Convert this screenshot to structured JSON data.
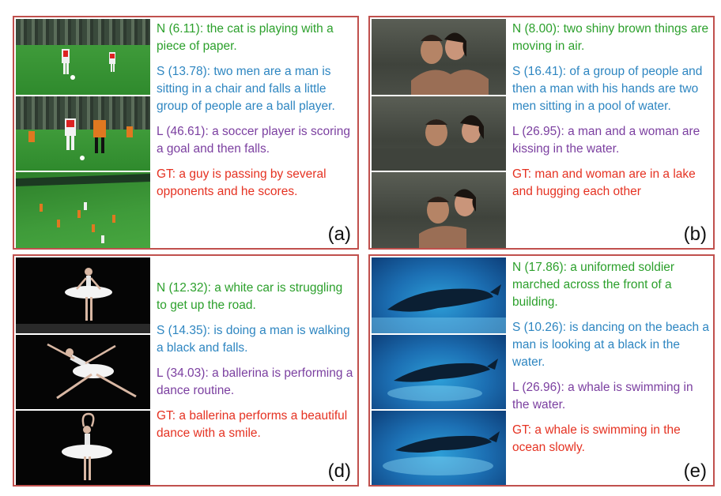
{
  "panels": {
    "a": {
      "label": "(a)",
      "captions": {
        "n": "N (6.11): the cat is playing with a piece of paper.",
        "s": "S (13.78): two men are a man is sitting in a chair and falls a little group of people are a ball player.",
        "l": "L (46.61): a soccer player is scoring a goal and then falls.",
        "gt": "GT: a guy is passing by several opponents and he scores."
      }
    },
    "b": {
      "label": "(b)",
      "captions": {
        "n": "N (8.00): two shiny brown things are moving in air.",
        "s": "S (16.41): of a group of people and then a man with his hands are two men sitting in a pool of water.",
        "l": "L (26.95): a man and a woman are kissing in the water.",
        "gt": "GT: man and woman are in a lake and hugging each other"
      }
    },
    "d": {
      "label": "(d)",
      "captions": {
        "n": "N (12.32): a white car is struggling to get up the road.",
        "s": "S (14.35): is doing a man is walking a black and falls.",
        "l": "L (34.03): a ballerina is performing a dance routine.",
        "gt": "GT: a ballerina performs a beautiful dance with a smile."
      }
    },
    "e": {
      "label": "(e)",
      "captions": {
        "n": "N (17.86): a uniformed soldier marched across the front of a building.",
        "s": "S (10.26): is dancing on the beach a man is looking at a black in the water.",
        "l": "L (26.96): a whale is swimming in the water.",
        "gt": "GT: a whale is swimming in the ocean slowly."
      }
    }
  },
  "colors": {
    "border": "#c0504d",
    "n": "#2ca02c",
    "s": "#2e86c1",
    "l": "#7b3fa0",
    "gt": "#e53222"
  }
}
